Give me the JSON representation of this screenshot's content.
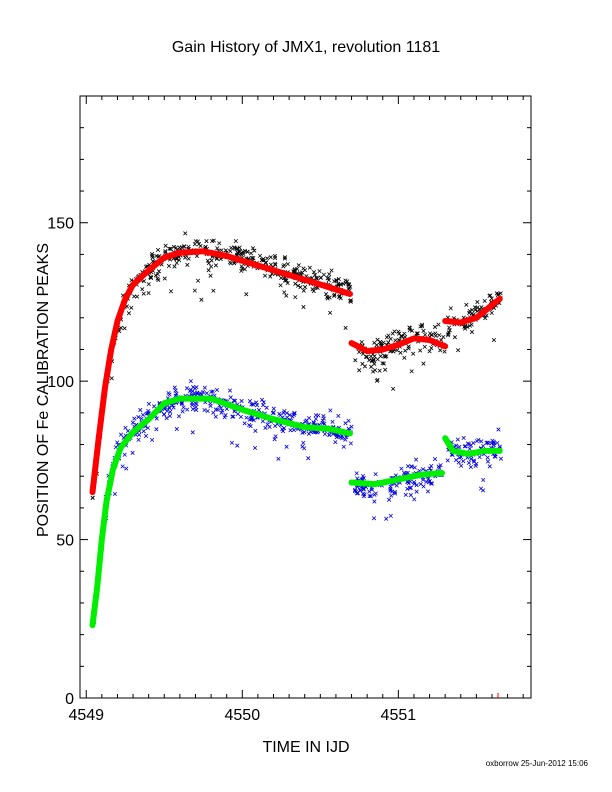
{
  "chart_data": {
    "type": "scatter",
    "title": "Gain History of JMX1, revolution 1181",
    "xlabel": "TIME IN IJD",
    "ylabel": "POSITION OF Fe CALIBRATION PEAKS",
    "xlim": [
      4548.96,
      4551.85
    ],
    "ylim": [
      0,
      190
    ],
    "x_ticks": [
      4549,
      4550,
      4551
    ],
    "x_tick_labels": [
      "4549",
      "4550",
      "4551"
    ],
    "y_ticks": [
      0,
      50,
      100,
      150
    ],
    "y_tick_labels": [
      "0",
      "50",
      "100",
      "150"
    ],
    "grid": false,
    "credit": "oxborrow 25-Jun-2012 15:06",
    "fits": [
      {
        "color": "#ff0000",
        "segments": [
          [
            [
              4549.04,
              65
            ],
            [
              4549.08,
              82
            ],
            [
              4549.12,
              98
            ],
            [
              4549.16,
              110
            ],
            [
              4549.2,
              119
            ],
            [
              4549.25,
              126
            ],
            [
              4549.3,
              130.5
            ],
            [
              4549.4,
              135
            ],
            [
              4549.5,
              139
            ],
            [
              4549.6,
              140.5
            ],
            [
              4549.75,
              141
            ],
            [
              4549.9,
              139.5
            ],
            [
              4550.1,
              136.5
            ],
            [
              4550.3,
              133.5
            ],
            [
              4550.5,
              130.5
            ],
            [
              4550.69,
              127.5
            ]
          ],
          [
            [
              4550.7,
              112
            ],
            [
              4550.8,
              109.5
            ],
            [
              4550.9,
              110
            ],
            [
              4551.0,
              111.5
            ],
            [
              4551.1,
              113.5
            ],
            [
              4551.2,
              113
            ],
            [
              4551.3,
              111
            ]
          ],
          [
            [
              4551.3,
              119
            ],
            [
              4551.4,
              118.5
            ],
            [
              4551.5,
              120
            ],
            [
              4551.55,
              122
            ],
            [
              4551.6,
              124
            ],
            [
              4551.65,
              126
            ]
          ]
        ]
      },
      {
        "color": "#00ee00",
        "segments": [
          [
            [
              4549.04,
              23
            ],
            [
              4549.07,
              35
            ],
            [
              4549.1,
              50
            ],
            [
              4549.13,
              62
            ],
            [
              4549.17,
              72
            ],
            [
              4549.22,
              79
            ],
            [
              4549.3,
              84
            ],
            [
              4549.4,
              88
            ],
            [
              4549.5,
              93
            ],
            [
              4549.6,
              94.5
            ],
            [
              4549.8,
              94.5
            ],
            [
              4550.0,
              91
            ],
            [
              4550.2,
              88
            ],
            [
              4550.4,
              85.5
            ],
            [
              4550.55,
              85
            ],
            [
              4550.69,
              83.5
            ]
          ],
          [
            [
              4550.7,
              68
            ],
            [
              4550.85,
              67.5
            ],
            [
              4551.0,
              69
            ],
            [
              4551.15,
              70.5
            ],
            [
              4551.28,
              71
            ]
          ],
          [
            [
              4551.3,
              82
            ],
            [
              4551.35,
              78
            ],
            [
              4551.45,
              77
            ],
            [
              4551.55,
              78
            ],
            [
              4551.65,
              78
            ]
          ]
        ]
      }
    ],
    "scatter": [
      {
        "color": "#000000",
        "marker": "x",
        "segments": [
          [
            4549.04,
            4550.7,
            [
              [
                4549.04,
                64
              ],
              [
                4549.08,
                80
              ],
              [
                4549.12,
                97
              ],
              [
                4549.16,
                110
              ],
              [
                4549.2,
                118
              ],
              [
                4549.25,
                126
              ],
              [
                4549.3,
                130
              ],
              [
                4549.4,
                135
              ],
              [
                4549.5,
                139
              ],
              [
                4549.6,
                141
              ],
              [
                4549.75,
                141
              ],
              [
                4549.9,
                140
              ],
              [
                4550.1,
                137
              ],
              [
                4550.3,
                134
              ],
              [
                4550.5,
                131
              ],
              [
                4550.7,
                128
              ]
            ]
          ],
          [
            4550.72,
            4551.3,
            [
              [
                4550.72,
                110
              ],
              [
                4550.8,
                108
              ],
              [
                4550.9,
                110
              ],
              [
                4551.0,
                113
              ],
              [
                4551.1,
                115
              ],
              [
                4551.2,
                114
              ],
              [
                4551.3,
                112
              ]
            ]
          ],
          [
            4551.31,
            4551.66,
            [
              [
                4551.31,
                118
              ],
              [
                4551.4,
                118
              ],
              [
                4551.5,
                121
              ],
              [
                4551.58,
                123
              ],
              [
                4551.66,
                127
              ]
            ]
          ]
        ]
      },
      {
        "color": "#0000dd",
        "marker": "x",
        "segments": [
          [
            4549.04,
            4550.7,
            [
              [
                4549.04,
                22
              ],
              [
                4549.08,
                38
              ],
              [
                4549.12,
                60
              ],
              [
                4549.17,
                72
              ],
              [
                4549.22,
                79
              ],
              [
                4549.3,
                84
              ],
              [
                4549.4,
                88
              ],
              [
                4549.5,
                93
              ],
              [
                4549.6,
                95
              ],
              [
                4549.8,
                95
              ],
              [
                4550.0,
                91
              ],
              [
                4550.2,
                88
              ],
              [
                4550.4,
                86
              ],
              [
                4550.55,
                85
              ],
              [
                4550.7,
                84
              ]
            ]
          ],
          [
            4550.72,
            4551.28,
            [
              [
                4550.72,
                67
              ],
              [
                4550.85,
                66
              ],
              [
                4551.0,
                68
              ],
              [
                4551.15,
                70
              ],
              [
                4551.28,
                70
              ]
            ]
          ],
          [
            4551.31,
            4551.66,
            [
              [
                4551.31,
                80
              ],
              [
                4551.4,
                77
              ],
              [
                4551.55,
                78
              ],
              [
                4551.66,
                79
              ]
            ]
          ]
        ]
      }
    ]
  }
}
